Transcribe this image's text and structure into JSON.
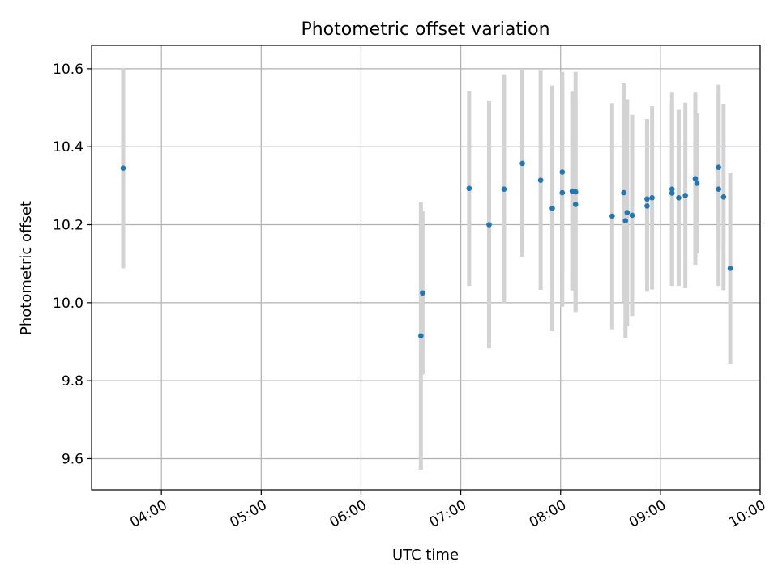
{
  "chart_data": {
    "type": "scatter",
    "title": "Photometric offset variation",
    "xlabel": "UTC time",
    "ylabel": "Photometric offset",
    "grid": true,
    "xlim": [
      "03:18",
      "10:00"
    ],
    "ylim": [
      9.52,
      10.66
    ],
    "x_ticks": [
      "04:00",
      "05:00",
      "06:00",
      "07:00",
      "08:00",
      "09:00",
      "10:00"
    ],
    "y_ticks": [
      9.6,
      9.8,
      10.0,
      10.2,
      10.4,
      10.6
    ],
    "colors": {
      "points": "#1f77b4",
      "error_bars": "#d3d3d3"
    },
    "series": [
      {
        "points": [
          {
            "x": "03:37",
            "y": 10.345,
            "err": 0.257
          },
          {
            "x": "06:36",
            "y": 9.915,
            "err": 0.343
          },
          {
            "x": "06:37",
            "y": 10.025,
            "err": 0.209
          },
          {
            "x": "07:05",
            "y": 10.293,
            "err": 0.25
          },
          {
            "x": "07:17",
            "y": 10.2,
            "err": 0.317
          },
          {
            "x": "07:26",
            "y": 10.291,
            "err": 0.293
          },
          {
            "x": "07:37",
            "y": 10.357,
            "err": 0.239
          },
          {
            "x": "07:48",
            "y": 10.314,
            "err": 0.281
          },
          {
            "x": "07:55",
            "y": 10.242,
            "err": 0.315
          },
          {
            "x": "08:01",
            "y": 10.282,
            "err": 0.292
          },
          {
            "x": "08:01",
            "y": 10.335,
            "err": 0.257
          },
          {
            "x": "08:07",
            "y": 10.286,
            "err": 0.255
          },
          {
            "x": "08:09",
            "y": 10.284,
            "err": 0.308
          },
          {
            "x": "08:09",
            "y": 10.252,
            "err": 0.272
          },
          {
            "x": "08:31",
            "y": 10.222,
            "err": 0.29
          },
          {
            "x": "08:38",
            "y": 10.282,
            "err": 0.281
          },
          {
            "x": "08:39",
            "y": 10.21,
            "err": 0.3
          },
          {
            "x": "08:40",
            "y": 10.231,
            "err": 0.291
          },
          {
            "x": "08:43",
            "y": 10.224,
            "err": 0.258
          },
          {
            "x": "08:52",
            "y": 10.248,
            "err": 0.22
          },
          {
            "x": "08:52",
            "y": 10.266,
            "err": 0.205
          },
          {
            "x": "08:55",
            "y": 10.269,
            "err": 0.235
          },
          {
            "x": "09:07",
            "y": 10.281,
            "err": 0.235
          },
          {
            "x": "09:07",
            "y": 10.291,
            "err": 0.248
          },
          {
            "x": "09:11",
            "y": 10.269,
            "err": 0.226
          },
          {
            "x": "09:15",
            "y": 10.275,
            "err": 0.238
          },
          {
            "x": "09:21",
            "y": 10.318,
            "err": 0.221
          },
          {
            "x": "09:22",
            "y": 10.306,
            "err": 0.18
          },
          {
            "x": "09:35",
            "y": 10.347,
            "err": 0.212
          },
          {
            "x": "09:35",
            "y": 10.291,
            "err": 0.248
          },
          {
            "x": "09:38",
            "y": 10.271,
            "err": 0.239
          },
          {
            "x": "09:42",
            "y": 10.088,
            "err": 0.244
          }
        ]
      }
    ]
  }
}
